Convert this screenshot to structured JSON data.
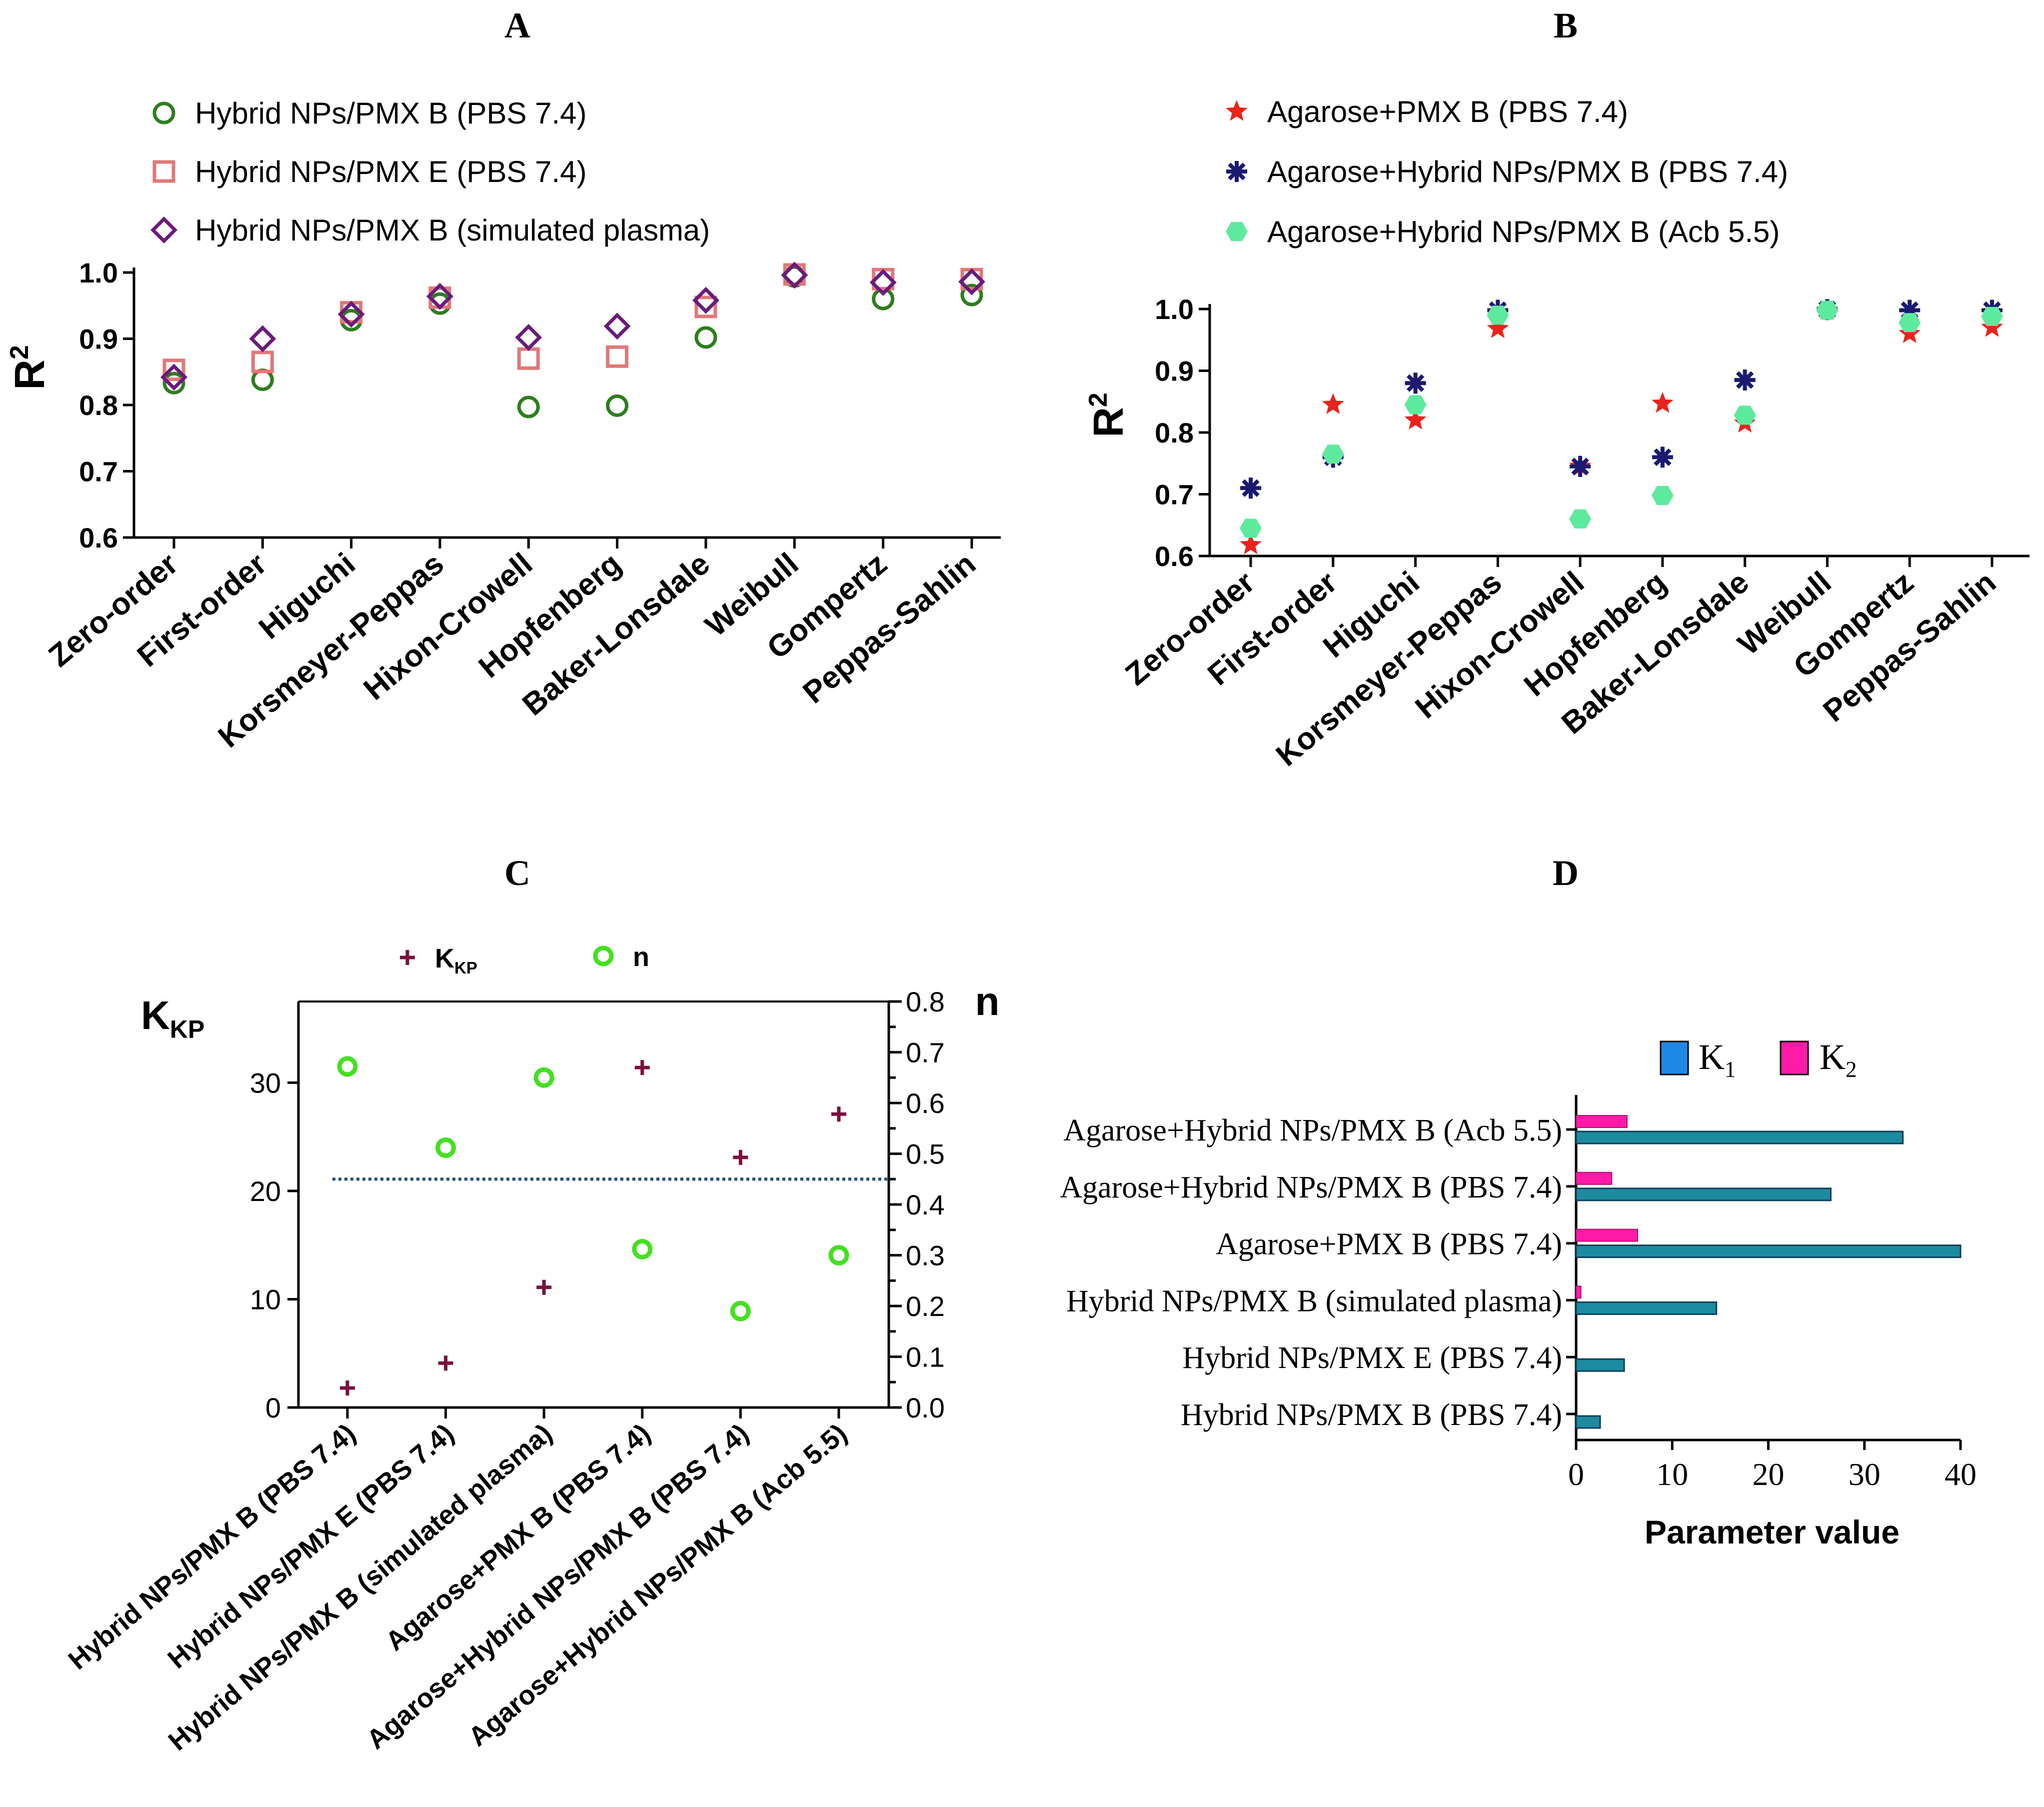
{
  "chart_data": [
    {
      "panel": "A",
      "type": "scatter",
      "title": "A",
      "ylabel": "R",
      "ylabel_sup": "2",
      "ylim": [
        0.6,
        1.0
      ],
      "yticks": [
        0.6,
        0.7,
        0.8,
        0.9,
        1.0
      ],
      "yticklabels": [
        "0.6",
        "0.7",
        "0.8",
        "0.9",
        "1.0"
      ],
      "categories": [
        "Zero-order",
        "First-order",
        "Higuchi",
        "Korsmeyer-Peppas",
        "Hixon-Crowell",
        "Hopfenberg",
        "Baker-Lonsdale",
        "Weibull",
        "Gompertz",
        "Peppas-Sahlin"
      ],
      "series": [
        {
          "name": "Hybrid NPs/PMX B (PBS 7.4)",
          "marker": "circle",
          "color": "#2e7d1f",
          "values": [
            0.833,
            0.838,
            0.928,
            0.953,
            0.797,
            0.799,
            0.902,
            0.994,
            0.96,
            0.966
          ]
        },
        {
          "name": "Hybrid NPs/PMX E (PBS 7.4)",
          "marker": "square",
          "color": "#e07878",
          "values": [
            0.853,
            0.865,
            0.94,
            0.962,
            0.87,
            0.873,
            0.948,
            0.997,
            0.99,
            0.99
          ]
        },
        {
          "name": "Hybrid NPs/PMX B (simulated plasma)",
          "marker": "diamond",
          "color": "#6a1b7a",
          "values": [
            0.842,
            0.9,
            0.937,
            0.964,
            0.902,
            0.919,
            0.958,
            0.996,
            0.985,
            0.986
          ]
        }
      ]
    },
    {
      "panel": "B",
      "type": "scatter",
      "title": "B",
      "ylabel": "R",
      "ylabel_sup": "2",
      "ylim": [
        0.6,
        1.0
      ],
      "yticks": [
        0.6,
        0.7,
        0.8,
        0.9,
        1.0
      ],
      "yticklabels": [
        "0.6",
        "0.7",
        "0.8",
        "0.9",
        "1.0"
      ],
      "categories": [
        "Zero-order",
        "First-order",
        "Higuchi",
        "Korsmeyer-Peppas",
        "Hixon-Crowell",
        "Hopfenberg",
        "Baker-Lonsdale",
        "Weibull",
        "Gompertz",
        "Peppas-Sahlin"
      ],
      "series": [
        {
          "name": "Agarose+PMX B (PBS 7.4)",
          "marker": "star",
          "color": "#e8241c",
          "values": [
            0.618,
            0.845,
            0.82,
            0.968,
            0.745,
            0.847,
            0.815,
            0.998,
            0.96,
            0.97
          ]
        },
        {
          "name": "Agarose+Hybrid NPs/PMX B (PBS 7.4)",
          "marker": "asterisk",
          "color": "#1a1a70",
          "values": [
            0.71,
            0.76,
            0.88,
            0.998,
            0.745,
            0.76,
            0.885,
            0.999,
            0.998,
            0.998
          ]
        },
        {
          "name": "Agarose+Hybrid NPs/PMX B (Acb 5.5)",
          "marker": "hexagon",
          "color": "#5eea9e",
          "values": [
            0.645,
            0.765,
            0.845,
            0.99,
            0.66,
            0.698,
            0.828,
            0.998,
            0.978,
            0.988
          ]
        }
      ]
    },
    {
      "panel": "C",
      "type": "scatter",
      "title": "C",
      "ylabel_left": "K",
      "ylabel_left_sub": "KP",
      "ylabel_right": "n",
      "ylim_left": [
        0,
        37.5
      ],
      "ylim_right": [
        0,
        0.8
      ],
      "yticks_left": [
        0,
        10,
        20,
        30
      ],
      "yticklabels_left": [
        "0",
        "10",
        "20",
        "30"
      ],
      "yticks_right": [
        0.0,
        0.1,
        0.2,
        0.3,
        0.4,
        0.5,
        0.6,
        0.7,
        0.8
      ],
      "yticklabels_right": [
        "0.0",
        "0.1",
        "0.2",
        "0.3",
        "0.4",
        "0.5",
        "0.6",
        "0.7",
        "0.8"
      ],
      "reference_line_n": 0.45,
      "categories": [
        "Hybrid NPs/PMX B (PBS 7.4)",
        "Hybrid NPs/PMX E (PBS 7.4)",
        "Hybrid NPs/PMX B (simulated plasma)",
        "Agarose+PMX B (PBS 7.4)",
        "Agarose+Hybrid NPs/PMX B (PBS 7.4)",
        "Agarose+Hybrid NPs/PMX B (Acb 5.5)"
      ],
      "series": [
        {
          "name": "K",
          "name_sub": "KP",
          "axis": "left",
          "marker": "plus",
          "color": "#7a1040",
          "values": [
            1.8,
            4.1,
            11.1,
            31.4,
            23.1,
            27.1
          ]
        },
        {
          "name": "n",
          "axis": "right",
          "marker": "ring",
          "color": "#44e020",
          "values": [
            0.672,
            0.512,
            0.65,
            0.312,
            0.19,
            0.3
          ]
        }
      ]
    },
    {
      "panel": "D",
      "type": "bar",
      "orientation": "horizontal",
      "title": "D",
      "xlabel": "Parameter value",
      "xlim": [
        0,
        40
      ],
      "xticks": [
        0,
        10,
        20,
        30,
        40
      ],
      "xticklabels": [
        "0",
        "10",
        "20",
        "30",
        "40"
      ],
      "categories": [
        "Hybrid NPs/PMX B (PBS 7.4)",
        "Hybrid NPs/PMX E (PBS 7.4)",
        "Hybrid NPs/PMX B (simulated plasma)",
        "Agarose+PMX B (PBS 7.4)",
        "Agarose+Hybrid NPs/PMX B (PBS 7.4)",
        "Agarose+Hybrid NPs/PMX B (Acb 5.5)"
      ],
      "series": [
        {
          "name": "K",
          "name_sub": "1",
          "color": "#1c8ba0",
          "legend_color": "#1e88e5",
          "values": [
            2.5,
            5.0,
            14.6,
            40.0,
            26.5,
            34.0
          ]
        },
        {
          "name": "K",
          "name_sub": "2",
          "color": "#ff1aa8",
          "values": [
            0.0,
            0.0,
            0.5,
            6.4,
            3.7,
            5.3
          ]
        }
      ]
    }
  ]
}
